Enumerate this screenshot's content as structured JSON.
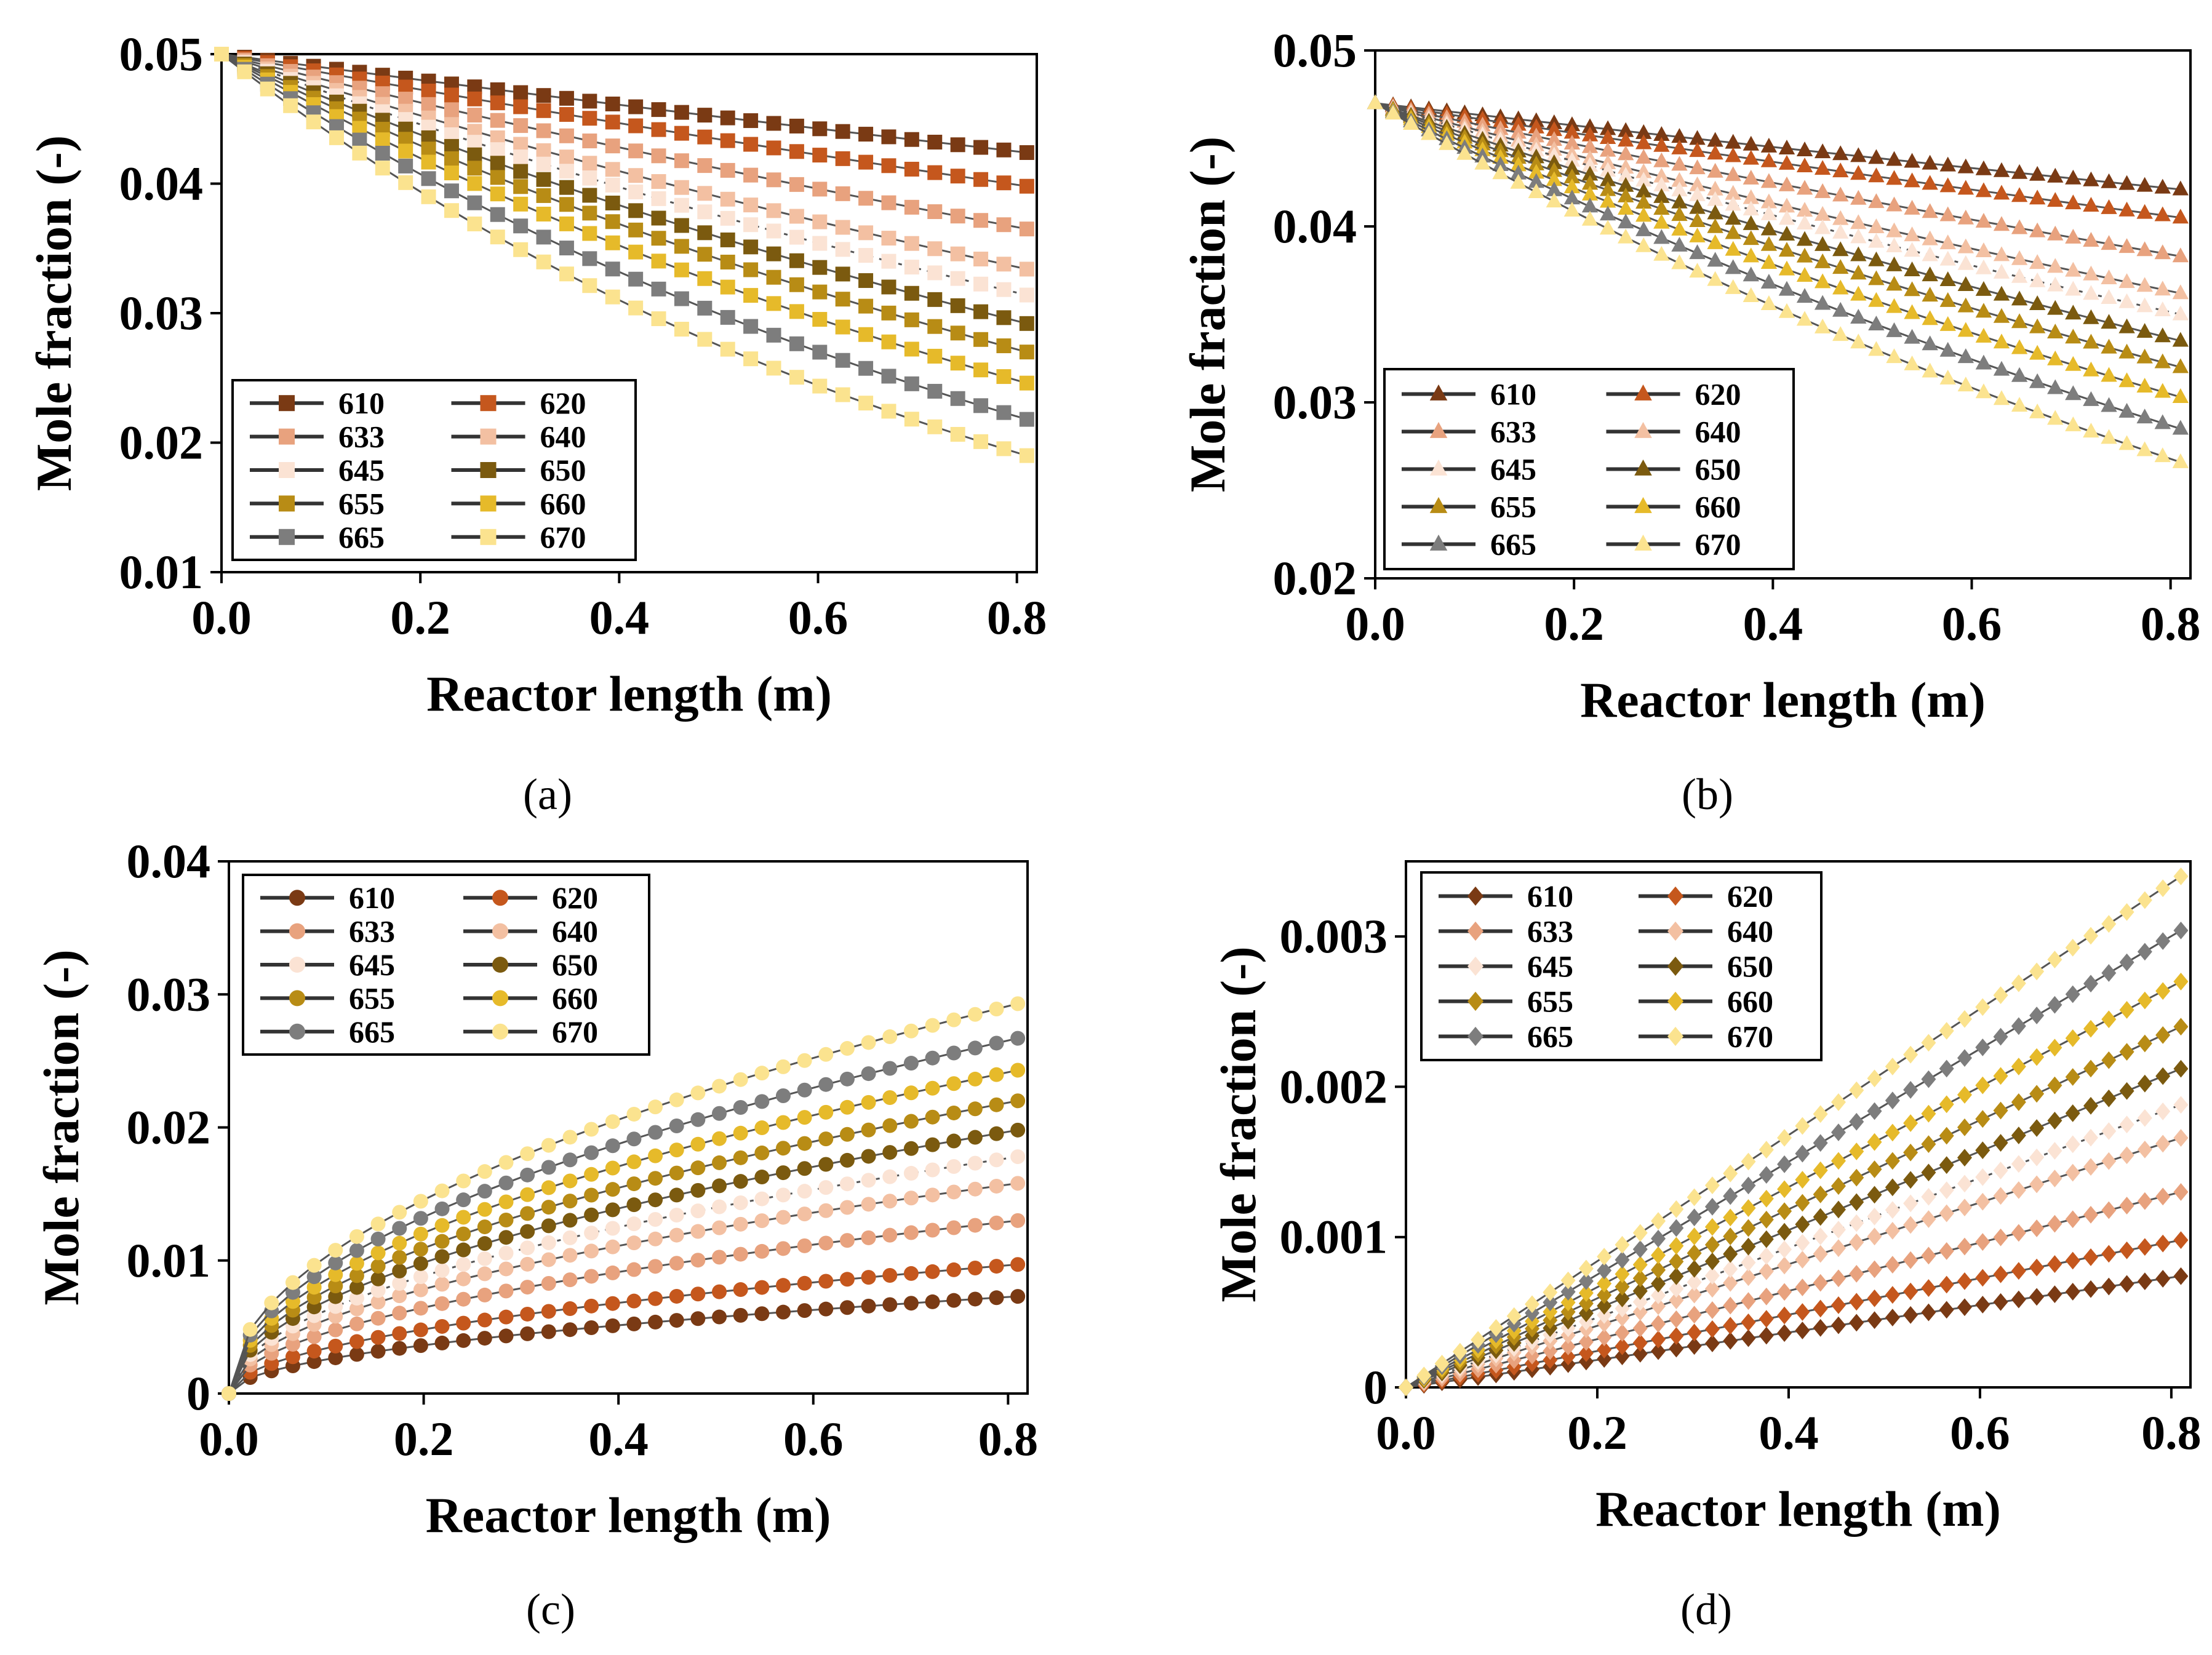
{
  "series_colors": {
    "610": "#7a3a14",
    "620": "#c5571d",
    "633": "#e8a27e",
    "640": "#f3c0a2",
    "645": "#fbe3d4",
    "650": "#7b5a0f",
    "655": "#b88c15",
    "660": "#e6ba2a",
    "665": "#7d7d7d",
    "670": "#fbe38f"
  },
  "chart_data": [
    {
      "panel": "a",
      "caption": "(a)",
      "type": "line",
      "marker": "square",
      "xlabel": "Reactor length (m)",
      "ylabel": "Mole fraction (-)",
      "xlim": [
        0,
        0.82
      ],
      "ylim": [
        0.01,
        0.05
      ],
      "xticks": [
        0,
        0.2,
        0.4,
        0.6,
        0.8
      ],
      "xtick_labels": [
        "0.0",
        "0.2",
        "0.4",
        "0.6",
        "0.8"
      ],
      "yticks": [
        0.01,
        0.02,
        0.03,
        0.04,
        0.05
      ],
      "ytick_labels": [
        "0.01",
        "0.02",
        "0.03",
        "0.04",
        "0.05"
      ],
      "legend_position": "bottom-left",
      "curve": "exp",
      "n_points": 36,
      "y0": 0.05,
      "series": [
        {
          "name": "610",
          "end": 0.0424
        },
        {
          "name": "620",
          "end": 0.0398
        },
        {
          "name": "633",
          "end": 0.0365
        },
        {
          "name": "640",
          "end": 0.0334
        },
        {
          "name": "645",
          "end": 0.0314
        },
        {
          "name": "650",
          "end": 0.0292
        },
        {
          "name": "655",
          "end": 0.027
        },
        {
          "name": "660",
          "end": 0.0246
        },
        {
          "name": "665",
          "end": 0.0218
        },
        {
          "name": "670",
          "end": 0.019
        }
      ]
    },
    {
      "panel": "b",
      "caption": "(b)",
      "type": "line",
      "marker": "triangle",
      "xlabel": "Reactor length (m)",
      "ylabel": "Mole fraction (-)",
      "xlim": [
        0,
        0.82
      ],
      "ylim": [
        0.02,
        0.05
      ],
      "xticks": [
        0,
        0.2,
        0.4,
        0.6,
        0.8
      ],
      "xtick_labels": [
        "0.0",
        "0.2",
        "0.4",
        "0.6",
        "0.8"
      ],
      "yticks": [
        0.02,
        0.03,
        0.04,
        0.05
      ],
      "ytick_labels": [
        "0.02",
        "0.03",
        "0.04",
        "0.05"
      ],
      "legend_position": "bottom-left",
      "curve": "exp",
      "n_points": 46,
      "y0": 0.047,
      "series": [
        {
          "name": "610",
          "end": 0.0421
        },
        {
          "name": "620",
          "end": 0.0405
        },
        {
          "name": "633",
          "end": 0.0383
        },
        {
          "name": "640",
          "end": 0.0362
        },
        {
          "name": "645",
          "end": 0.035
        },
        {
          "name": "650",
          "end": 0.0335
        },
        {
          "name": "655",
          "end": 0.032
        },
        {
          "name": "660",
          "end": 0.0303
        },
        {
          "name": "665",
          "end": 0.0285
        },
        {
          "name": "670",
          "end": 0.0266
        }
      ]
    },
    {
      "panel": "c",
      "caption": "(c)",
      "type": "line",
      "marker": "circle",
      "xlabel": "Reactor length (m)",
      "ylabel": "Mole fraction (-)",
      "xlim": [
        0,
        0.82
      ],
      "ylim": [
        0,
        0.04
      ],
      "xticks": [
        0,
        0.2,
        0.4,
        0.6,
        0.8
      ],
      "xtick_labels": [
        "0.0",
        "0.2",
        "0.4",
        "0.6",
        "0.8"
      ],
      "yticks": [
        0,
        0.01,
        0.02,
        0.03,
        0.04
      ],
      "ytick_labels": [
        "0",
        "0.01",
        "0.02",
        "0.03",
        "0.04"
      ],
      "legend_position": "top-left",
      "curve": "sqrt",
      "n_points": 38,
      "y0": 0,
      "series": [
        {
          "name": "610",
          "end": 0.0073
        },
        {
          "name": "620",
          "end": 0.0097
        },
        {
          "name": "633",
          "end": 0.013
        },
        {
          "name": "640",
          "end": 0.0158
        },
        {
          "name": "645",
          "end": 0.0178
        },
        {
          "name": "650",
          "end": 0.0198
        },
        {
          "name": "655",
          "end": 0.022
        },
        {
          "name": "660",
          "end": 0.0243
        },
        {
          "name": "665",
          "end": 0.0267
        },
        {
          "name": "670",
          "end": 0.0293
        }
      ]
    },
    {
      "panel": "d",
      "caption": "(d)",
      "type": "line",
      "marker": "diamond",
      "xlabel": "Reactor length (m)",
      "ylabel": "Mole fraction (-)",
      "xlim": [
        0,
        0.82
      ],
      "ylim": [
        0,
        0.0035
      ],
      "xticks": [
        0,
        0.2,
        0.4,
        0.6,
        0.8
      ],
      "xtick_labels": [
        "0.0",
        "0.2",
        "0.4",
        "0.6",
        "0.8"
      ],
      "yticks": [
        0,
        0.001,
        0.002,
        0.003
      ],
      "ytick_labels": [
        "0",
        "0.001",
        "0.002",
        "0.003"
      ],
      "legend_position": "top-left",
      "curve": "linear",
      "n_points": 44,
      "y0": 0,
      "series": [
        {
          "name": "610",
          "end": 0.00074
        },
        {
          "name": "620",
          "end": 0.00098
        },
        {
          "name": "633",
          "end": 0.0013
        },
        {
          "name": "640",
          "end": 0.00166
        },
        {
          "name": "645",
          "end": 0.00188
        },
        {
          "name": "650",
          "end": 0.00212
        },
        {
          "name": "655",
          "end": 0.0024
        },
        {
          "name": "660",
          "end": 0.0027
        },
        {
          "name": "665",
          "end": 0.00304
        },
        {
          "name": "670",
          "end": 0.0034
        }
      ]
    }
  ]
}
